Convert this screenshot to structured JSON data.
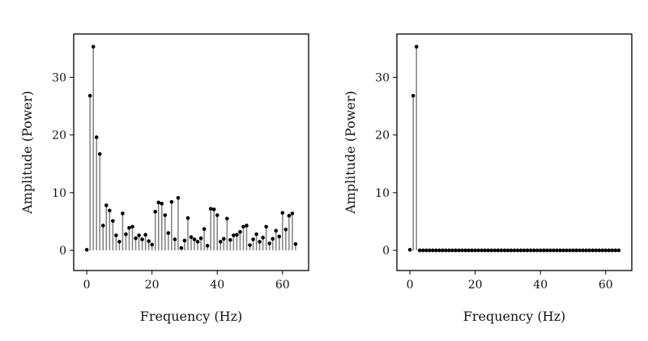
{
  "colors": {
    "stem": "#808080",
    "marker": "#000000",
    "axes": "#000000",
    "background": "#ffffff"
  },
  "chart_data": [
    {
      "type": "stem",
      "title": "",
      "xlabel": "Frequency (Hz)",
      "ylabel": "Amplitude (Power)",
      "xlim": [
        -4,
        68
      ],
      "ylim": [
        -3.5,
        37.5
      ],
      "xticks": [
        0,
        20,
        40,
        60
      ],
      "yticks": [
        0,
        10,
        20,
        30
      ],
      "grid": false,
      "series": [
        {
          "x": [
            0,
            1,
            2,
            3,
            4,
            5,
            6,
            7,
            8,
            9,
            10,
            11,
            12,
            13,
            14,
            15,
            16,
            17,
            18,
            19,
            20,
            21,
            22,
            23,
            24,
            25,
            26,
            27,
            28,
            29,
            30,
            31,
            32,
            33,
            34,
            35,
            36,
            37,
            38,
            39,
            40,
            41,
            42,
            43,
            44,
            45,
            46,
            47,
            48,
            49,
            50,
            51,
            52,
            53,
            54,
            55,
            56,
            57,
            58,
            59,
            60,
            61,
            62,
            63,
            64
          ],
          "values": [
            0.1,
            26.8,
            35.3,
            19.6,
            16.7,
            4.3,
            7.8,
            6.9,
            5.1,
            2.6,
            1.5,
            6.4,
            2.8,
            3.9,
            4.1,
            2.1,
            2.6,
            1.9,
            2.7,
            1.6,
            1.0,
            6.7,
            8.3,
            8.1,
            6.1,
            3.0,
            8.4,
            1.9,
            9.1,
            0.4,
            1.7,
            5.6,
            2.3,
            1.9,
            1.5,
            2.1,
            3.7,
            0.8,
            7.2,
            7.1,
            6.1,
            1.5,
            2.0,
            5.5,
            1.8,
            2.6,
            2.7,
            3.2,
            4.1,
            4.3,
            0.9,
            1.9,
            2.8,
            1.5,
            2.2,
            4.1,
            1.2,
            2.0,
            3.4,
            2.4,
            6.5,
            3.6,
            6.0,
            6.4,
            1.1
          ]
        }
      ]
    },
    {
      "type": "stem",
      "title": "",
      "xlabel": "Frequency (Hz)",
      "ylabel": "Amplitude (Power)",
      "xlim": [
        -4,
        68
      ],
      "ylim": [
        -3.5,
        37.5
      ],
      "xticks": [
        0,
        20,
        40,
        60
      ],
      "yticks": [
        0,
        10,
        20,
        30
      ],
      "grid": false,
      "series": [
        {
          "x": [
            0,
            1,
            2,
            3,
            4,
            5,
            6,
            7,
            8,
            9,
            10,
            11,
            12,
            13,
            14,
            15,
            16,
            17,
            18,
            19,
            20,
            21,
            22,
            23,
            24,
            25,
            26,
            27,
            28,
            29,
            30,
            31,
            32,
            33,
            34,
            35,
            36,
            37,
            38,
            39,
            40,
            41,
            42,
            43,
            44,
            45,
            46,
            47,
            48,
            49,
            50,
            51,
            52,
            53,
            54,
            55,
            56,
            57,
            58,
            59,
            60,
            61,
            62,
            63,
            64
          ],
          "values": [
            0.1,
            26.8,
            35.3,
            0,
            0,
            0,
            0,
            0,
            0,
            0,
            0,
            0,
            0,
            0,
            0,
            0,
            0,
            0,
            0,
            0,
            0,
            0,
            0,
            0,
            0,
            0,
            0,
            0,
            0,
            0,
            0,
            0,
            0,
            0,
            0,
            0,
            0,
            0,
            0,
            0,
            0,
            0,
            0,
            0,
            0,
            0,
            0,
            0,
            0,
            0,
            0,
            0,
            0,
            0,
            0,
            0,
            0,
            0,
            0,
            0,
            0,
            0,
            0,
            0,
            0
          ]
        }
      ]
    }
  ]
}
